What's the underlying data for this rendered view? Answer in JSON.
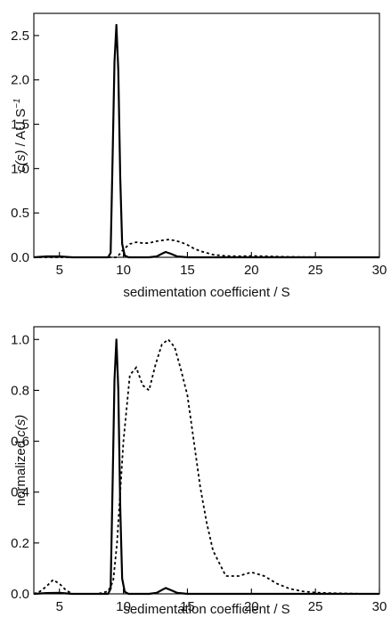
{
  "chart_data": [
    {
      "type": "line",
      "xlabel": "sedimentation coefficient / S",
      "ylabel_italic": "c(s)",
      "ylabel_rest": " / AU S",
      "ylabel_sup": "−1",
      "xlim": [
        3,
        30
      ],
      "ylim": [
        0,
        2.75
      ],
      "xticks": [
        "5",
        "10",
        "15",
        "20",
        "25",
        "30"
      ],
      "yticks": [
        "0.0",
        "0.5",
        "1.0",
        "1.5",
        "2.0",
        "2.5"
      ],
      "grid": false,
      "series": [
        {
          "style": "solid",
          "x": [
            3,
            4,
            5,
            6,
            7,
            8,
            8.8,
            9.0,
            9.15,
            9.3,
            9.45,
            9.6,
            9.75,
            9.9,
            10.1,
            10.4,
            11,
            12,
            12.6,
            13.0,
            13.3,
            13.7,
            14.2,
            15,
            18,
            22,
            25,
            30
          ],
          "y": [
            0,
            0.01,
            0.01,
            0,
            0,
            0,
            0,
            0.05,
            1.1,
            2.2,
            2.62,
            2.1,
            0.9,
            0.15,
            0.02,
            0,
            0,
            0,
            0.01,
            0.04,
            0.06,
            0.04,
            0.01,
            0,
            0,
            0,
            0,
            0
          ]
        },
        {
          "style": "dotted",
          "x": [
            3,
            9.5,
            10,
            10.5,
            11,
            11.5,
            12,
            12.5,
            13,
            13.5,
            14,
            14.5,
            15,
            15.5,
            16,
            17,
            18,
            19,
            20,
            21,
            22,
            23,
            24,
            25,
            26,
            27,
            28,
            29,
            30
          ],
          "y": [
            0,
            0,
            0.09,
            0.15,
            0.17,
            0.16,
            0.16,
            0.18,
            0.19,
            0.2,
            0.19,
            0.17,
            0.14,
            0.1,
            0.07,
            0.03,
            0.015,
            0.012,
            0.015,
            0.012,
            0.008,
            0.005,
            0.003,
            0.002,
            0.001,
            0,
            0,
            0,
            0
          ]
        }
      ]
    },
    {
      "type": "line",
      "xlabel": "sedimentation coefficient / S",
      "ylabel_plain": "normalized ",
      "ylabel_italic": "c(s)",
      "xlim": [
        3,
        30
      ],
      "ylim": [
        0,
        1.05
      ],
      "xticks": [
        "5",
        "10",
        "15",
        "20",
        "25",
        "30"
      ],
      "yticks": [
        "0.0",
        "0.2",
        "0.4",
        "0.6",
        "0.8",
        "1.0"
      ],
      "grid": false,
      "series": [
        {
          "style": "solid",
          "x": [
            3,
            4,
            5,
            6,
            7,
            8,
            8.8,
            9.0,
            9.15,
            9.3,
            9.45,
            9.6,
            9.75,
            9.9,
            10.1,
            10.4,
            11,
            12,
            12.6,
            13.0,
            13.3,
            13.7,
            14.2,
            15,
            18,
            22,
            25,
            30
          ],
          "y": [
            0,
            0.003,
            0.004,
            0,
            0,
            0,
            0,
            0.02,
            0.42,
            0.84,
            1.0,
            0.8,
            0.34,
            0.06,
            0.008,
            0,
            0,
            0,
            0.004,
            0.015,
            0.023,
            0.015,
            0.004,
            0,
            0,
            0,
            0,
            0
          ]
        },
        {
          "style": "dotted",
          "x": [
            3,
            3.5,
            4,
            4.5,
            5,
            5.5,
            6,
            6.5,
            7,
            8,
            8.8,
            9.2,
            9.5,
            10,
            10.5,
            11,
            11.5,
            12,
            12.5,
            13,
            13.5,
            14,
            14.5,
            15,
            15.5,
            16,
            16.5,
            17,
            18,
            19,
            20,
            21,
            22,
            23,
            24,
            25,
            26,
            27,
            28,
            29,
            30
          ],
          "y": [
            0,
            0.01,
            0.03,
            0.055,
            0.04,
            0.015,
            0,
            0,
            0,
            0,
            0.01,
            0.05,
            0.2,
            0.6,
            0.86,
            0.89,
            0.82,
            0.8,
            0.9,
            0.98,
            1.0,
            0.97,
            0.88,
            0.78,
            0.6,
            0.42,
            0.28,
            0.17,
            0.07,
            0.07,
            0.085,
            0.07,
            0.04,
            0.02,
            0.01,
            0.005,
            0.003,
            0.002,
            0.001,
            0,
            0
          ]
        }
      ]
    }
  ]
}
